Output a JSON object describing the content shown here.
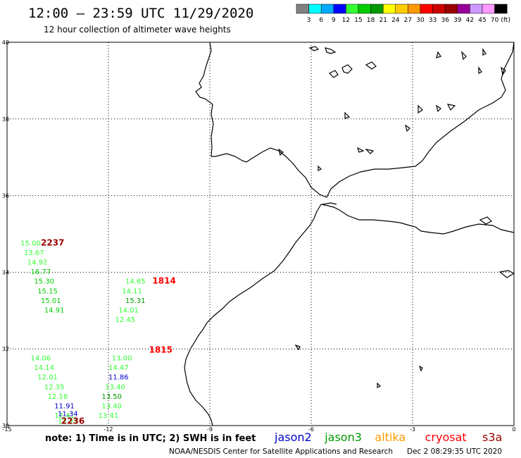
{
  "header": {
    "title": "12:00 – 23:59 UTC 11/29/2020",
    "subtitle": "12 hour collection of altimeter wave heights"
  },
  "color_scale": {
    "labels": [
      "3",
      "6",
      "9",
      "12",
      "15",
      "18",
      "21",
      "24",
      "27",
      "30",
      "33",
      "36",
      "39",
      "42",
      "45",
      "70",
      "(ft)"
    ],
    "colors": [
      "#808080",
      "#00ffff",
      "#00aaff",
      "#0000ff",
      "#33ff33",
      "#00cc00",
      "#009900",
      "#ffff00",
      "#ffcc00",
      "#ff9900",
      "#ff0000",
      "#cc0000",
      "#990000",
      "#990099",
      "#cc99ff",
      "#ff99ff",
      "#000000"
    ]
  },
  "footer": {
    "note": "note:  1) Time is in UTC;  2) SWH is in feet",
    "credit": "NOAA/NESDIS Center for Satellite Applications and Research",
    "timestamp": "Dec  2 08:29:35 UTC 2020"
  },
  "satellites": [
    {
      "name": "jason2",
      "color": "#0000cc"
    },
    {
      "name": "jason3",
      "color": "#009900"
    },
    {
      "name": "altika",
      "color": "#ff9900"
    },
    {
      "name": "cryosat",
      "color": "#ff0000"
    },
    {
      "name": "s3a",
      "color": "#990000"
    }
  ],
  "chart_data": {
    "type": "scatter",
    "title": "12:00 – 23:59 UTC 11/29/2020",
    "xlim": [
      -15,
      0
    ],
    "ylim": [
      30,
      40
    ],
    "x_ticks": [
      "-15",
      "-12",
      "-9",
      "-6",
      "-3",
      "0"
    ],
    "y_ticks": [
      "30",
      "32",
      "34",
      "36",
      "38",
      "40"
    ],
    "grid": true,
    "time_labels": [
      {
        "lon": -14.0,
        "lat": 34.7,
        "text": "2237",
        "color": "#990000"
      },
      {
        "lon": -10.7,
        "lat": 33.7,
        "text": "1814",
        "color": "#ff0000"
      },
      {
        "lon": -10.8,
        "lat": 31.9,
        "text": "1815",
        "color": "#ff0000"
      },
      {
        "lon": -13.4,
        "lat": 30.05,
        "text": "2236",
        "color": "#990000"
      }
    ],
    "series": [
      {
        "name": "s3a",
        "color": "#33ff33",
        "points": [
          {
            "lon": -14.6,
            "lat": 34.7,
            "swh": "15.00"
          },
          {
            "lon": -14.5,
            "lat": 34.45,
            "swh": "13.67"
          },
          {
            "lon": -14.4,
            "lat": 34.2,
            "swh": "14.92"
          },
          {
            "lon": -14.3,
            "lat": 31.7,
            "swh": "14.06"
          },
          {
            "lon": -14.2,
            "lat": 31.45,
            "swh": "14.14"
          },
          {
            "lon": -14.1,
            "lat": 31.2,
            "swh": "12.01"
          },
          {
            "lon": -13.9,
            "lat": 30.95,
            "swh": "12.35"
          },
          {
            "lon": -13.8,
            "lat": 30.7,
            "swh": "12.16"
          },
          {
            "lon": -13.6,
            "lat": 30.2,
            "swh": "12.41"
          },
          {
            "lon": -13.5,
            "lat": 30.05,
            "swh": "12.27"
          }
        ]
      },
      {
        "name": "s3a-2",
        "color": "#00cc00",
        "points": [
          {
            "lon": -14.3,
            "lat": 33.95,
            "swh": "16.77"
          },
          {
            "lon": -14.2,
            "lat": 33.7,
            "swh": "15.30"
          },
          {
            "lon": -14.1,
            "lat": 33.45,
            "swh": "15.15"
          },
          {
            "lon": -14.0,
            "lat": 33.2,
            "swh": "15.01"
          },
          {
            "lon": -13.9,
            "lat": 32.95,
            "swh": "14.91"
          }
        ]
      },
      {
        "name": "cryosat",
        "color": "#33ff33",
        "points": [
          {
            "lon": -11.5,
            "lat": 33.7,
            "swh": "14.65"
          },
          {
            "lon": -11.6,
            "lat": 33.45,
            "swh": "14.11"
          },
          {
            "lon": -11.7,
            "lat": 32.95,
            "swh": "14.01"
          },
          {
            "lon": -11.8,
            "lat": 32.7,
            "swh": "12.45"
          },
          {
            "lon": -11.9,
            "lat": 31.7,
            "swh": "13.00"
          },
          {
            "lon": -12.0,
            "lat": 31.45,
            "swh": "14.47"
          },
          {
            "lon": -12.1,
            "lat": 30.95,
            "swh": "13.40"
          },
          {
            "lon": -12.2,
            "lat": 30.45,
            "swh": "13.40"
          },
          {
            "lon": -12.3,
            "lat": 30.2,
            "swh": "13.41"
          }
        ]
      },
      {
        "name": "cryosat-2",
        "color": "#009900",
        "points": [
          {
            "lon": -11.5,
            "lat": 33.2,
            "swh": "15.31"
          },
          {
            "lon": -12.2,
            "lat": 30.7,
            "swh": "13.50"
          }
        ]
      },
      {
        "name": "jason2",
        "color": "#0000cc",
        "points": [
          {
            "lon": -12.0,
            "lat": 31.2,
            "swh": "11.86"
          },
          {
            "lon": -13.6,
            "lat": 30.45,
            "swh": "11.91"
          },
          {
            "lon": -13.5,
            "lat": 30.25,
            "swh": "11.34"
          }
        ]
      }
    ]
  }
}
